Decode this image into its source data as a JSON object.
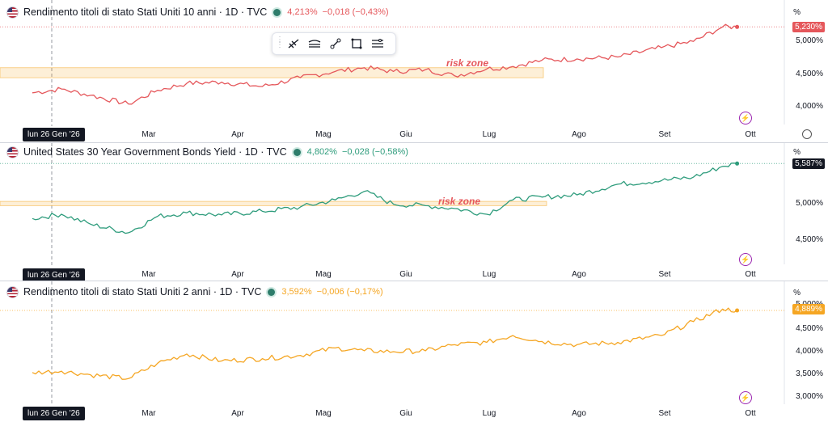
{
  "panes": [
    {
      "title": "Rendimento titoli di stato Stati Uniti 10 anni · 1D · TVC",
      "value": "4,213%",
      "change": "−0,018 (−0,43%)",
      "color": "#e5575b",
      "last_label": "5,230%",
      "unit_label": "%",
      "y_labels": [
        "5,000%",
        "4,500%",
        "4,000%"
      ],
      "risk_zone_label": "risk zone",
      "date_label": "lun 26 Gen '26",
      "x_labels": [
        "Mar",
        "Apr",
        "Mag",
        "Giu",
        "Lug",
        "Ago",
        "Set",
        "Ott"
      ]
    },
    {
      "title": "United States 30 Year Government Bonds Yield · 1D · TVC",
      "value": "4,802%",
      "change": "−0,028 (−0,58%)",
      "color": "#2e9c7c",
      "last_label": "5,587%",
      "unit_label": "%",
      "y_labels": [
        "5,000%",
        "4,500%"
      ],
      "risk_zone_label": "risk zone",
      "date_label": "lun 26 Gen '26",
      "x_labels": [
        "Mar",
        "Apr",
        "Mag",
        "Giu",
        "Lug",
        "Ago",
        "Set",
        "Ott"
      ]
    },
    {
      "title": "Rendimento titoli di stato Stati Uniti 2 anni · 1D · TVC",
      "value": "3,592%",
      "change": "−0,006 (−0,17%)",
      "color": "#f5a623",
      "last_label": "4,889%",
      "unit_label": "%",
      "y_labels": [
        "5,000%",
        "4,500%",
        "4,000%",
        "3,500%",
        "3,000%"
      ],
      "date_label": "lun 26 Gen '26",
      "x_labels": [
        "Mar",
        "Apr",
        "Mag",
        "Giu",
        "Lug",
        "Ago",
        "Set",
        "Ott"
      ]
    }
  ],
  "chart_data": [
    {
      "type": "line",
      "series": [
        {
          "name": "Rendimento titoli di stato Stati Uniti 10 anni",
          "color": "#e5575b",
          "x": [
            "2026-01-26",
            "2026-02-05",
            "2026-02-15",
            "2026-02-28",
            "2026-03-10",
            "2026-03-20",
            "2026-04-01",
            "2026-04-15",
            "2026-04-28",
            "2026-05-10",
            "2026-05-20",
            "2026-05-30",
            "2026-06-10",
            "2026-06-20",
            "2026-07-01",
            "2026-07-10",
            "2026-07-20",
            "2026-08-01",
            "2026-08-15",
            "2026-08-30",
            "2026-09-10",
            "2026-09-20",
            "2026-09-25"
          ],
          "values": [
            4.18,
            4.24,
            4.14,
            4.0,
            4.22,
            4.33,
            4.35,
            4.28,
            4.42,
            4.52,
            4.58,
            4.52,
            4.55,
            4.45,
            4.56,
            4.6,
            4.7,
            4.72,
            4.75,
            4.9,
            5.0,
            5.23,
            5.23
          ]
        }
      ],
      "ylim": [
        3.7,
        5.35
      ],
      "risk_zone": [
        4.42,
        4.58
      ]
    },
    {
      "type": "line",
      "series": [
        {
          "name": "United States 30 Year Government Bonds Yield",
          "color": "#2e9c7c",
          "x": [
            "2026-01-26",
            "2026-02-05",
            "2026-02-15",
            "2026-02-28",
            "2026-03-10",
            "2026-03-20",
            "2026-04-01",
            "2026-04-15",
            "2026-04-28",
            "2026-05-10",
            "2026-05-20",
            "2026-05-30",
            "2026-06-10",
            "2026-06-20",
            "2026-07-01",
            "2026-07-10",
            "2026-07-20",
            "2026-08-01",
            "2026-08-15",
            "2026-08-30",
            "2026-09-10",
            "2026-09-20",
            "2026-09-25"
          ],
          "values": [
            4.82,
            4.88,
            4.74,
            4.62,
            4.85,
            4.9,
            4.87,
            4.92,
            4.98,
            5.08,
            5.2,
            5.02,
            5.0,
            4.96,
            4.88,
            5.08,
            5.12,
            5.15,
            5.3,
            5.35,
            5.4,
            5.55,
            5.59
          ]
        }
      ],
      "ylim": [
        4.2,
        5.65
      ],
      "risk_zone": [
        5.0,
        5.06
      ]
    },
    {
      "type": "line",
      "series": [
        {
          "name": "Rendimento titoli di stato Stati Uniti 2 anni",
          "color": "#f5a623",
          "x": [
            "2026-01-26",
            "2026-02-05",
            "2026-02-15",
            "2026-02-28",
            "2026-03-10",
            "2026-03-20",
            "2026-04-01",
            "2026-04-15",
            "2026-04-28",
            "2026-05-10",
            "2026-05-20",
            "2026-05-30",
            "2026-06-10",
            "2026-06-20",
            "2026-07-01",
            "2026-07-10",
            "2026-07-20",
            "2026-08-01",
            "2026-08-15",
            "2026-08-30",
            "2026-09-10",
            "2026-09-20",
            "2026-09-25"
          ],
          "values": [
            3.55,
            3.58,
            3.5,
            3.42,
            3.75,
            3.95,
            3.8,
            3.85,
            3.92,
            4.08,
            4.02,
            4.0,
            4.02,
            4.15,
            4.2,
            4.35,
            4.22,
            4.15,
            4.2,
            4.35,
            4.65,
            4.92,
            4.89
          ]
        }
      ],
      "ylim": [
        2.9,
        5.1
      ]
    }
  ]
}
